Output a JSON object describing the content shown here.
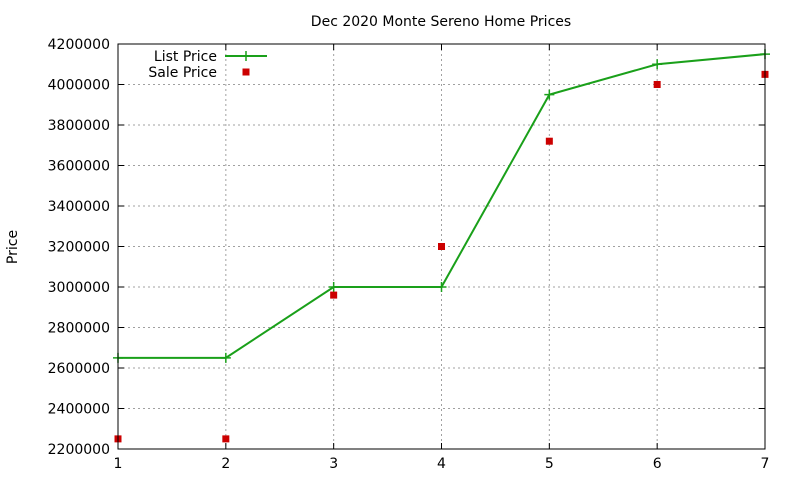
{
  "chart_data": {
    "type": "line",
    "title": "Dec 2020 Monte Sereno Home Prices",
    "xlabel": "",
    "ylabel": "Price",
    "x": [
      1,
      2,
      3,
      4,
      5,
      6,
      7
    ],
    "xlim": [
      1,
      7
    ],
    "ylim": [
      2200000,
      4200000
    ],
    "xticks": [
      1,
      2,
      3,
      4,
      5,
      6,
      7
    ],
    "yticks": [
      2200000,
      2400000,
      2600000,
      2800000,
      3000000,
      3200000,
      3400000,
      3600000,
      3800000,
      4000000,
      4200000
    ],
    "grid": true,
    "legend_position": "top-left",
    "series": [
      {
        "name": "List Price",
        "style": "line-with-plus-markers",
        "color": "#1aa01a",
        "values": [
          2650000,
          2650000,
          3000000,
          3000000,
          3950000,
          4100000,
          4150000
        ]
      },
      {
        "name": "Sale Price",
        "style": "square-markers",
        "color": "#cc0000",
        "values": [
          2250000,
          2250000,
          2960000,
          3200000,
          3720000,
          4000000,
          4050000
        ]
      }
    ]
  }
}
